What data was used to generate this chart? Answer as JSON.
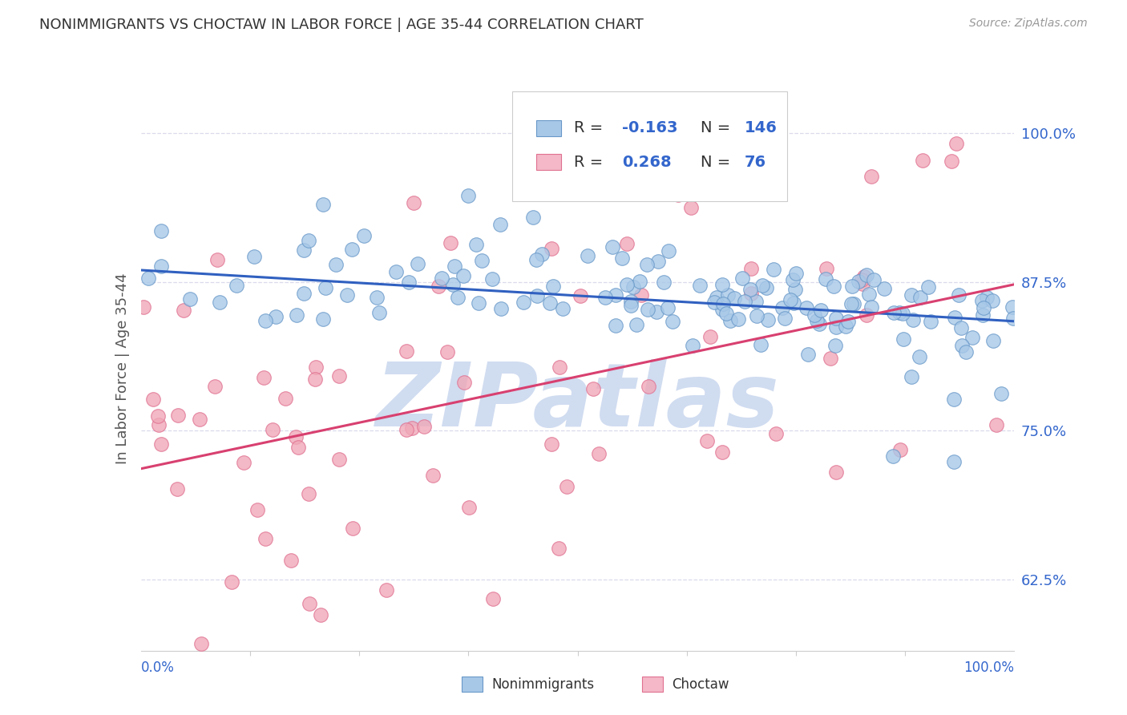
{
  "title": "NONIMMIGRANTS VS CHOCTAW IN LABOR FORCE | AGE 35-44 CORRELATION CHART",
  "source": "Source: ZipAtlas.com",
  "ylabel": "In Labor Force | Age 35-44",
  "yticks": [
    0.625,
    0.75,
    0.875,
    1.0
  ],
  "ytick_labels": [
    "62.5%",
    "75.0%",
    "87.5%",
    "100.0%"
  ],
  "xmin": 0.0,
  "xmax": 1.0,
  "ymin": 0.565,
  "ymax": 1.04,
  "blue_R": -0.163,
  "blue_N": 146,
  "pink_R": 0.268,
  "pink_N": 76,
  "blue_color": "#A8C8E8",
  "pink_color": "#F0A8B8",
  "blue_edge": "#6898C8",
  "pink_edge": "#E07090",
  "blue_line_color": "#3060C0",
  "pink_line_color": "#D84070",
  "blue_fill": "#A8C8E8",
  "pink_fill": "#F4B8C8",
  "background_color": "#FFFFFF",
  "grid_color": "#DADAEC",
  "title_color": "#333333",
  "axis_label_color": "#3366CC",
  "watermark_color": "#D0DCF0",
  "seed": 42,
  "blue_line_y0": 0.885,
  "blue_line_y1": 0.842,
  "pink_line_y0": 0.718,
  "pink_line_y1": 0.873
}
